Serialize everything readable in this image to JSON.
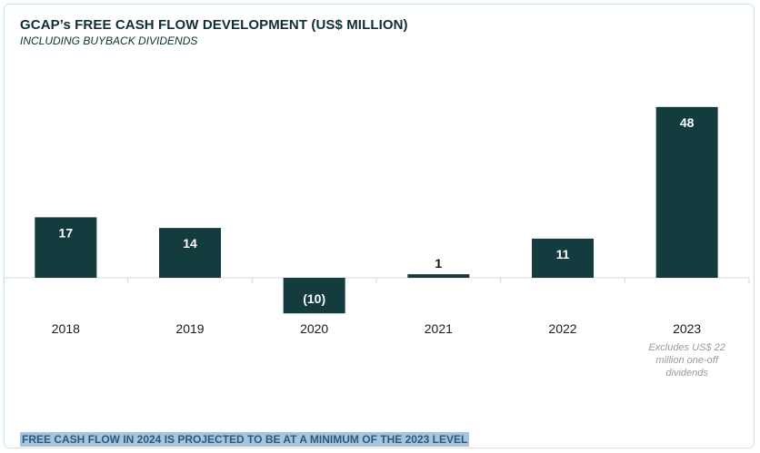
{
  "chart_data": {
    "type": "bar",
    "title": "GCAP’s FREE CASH FLOW DEVELOPMENT (US$ MILLION)",
    "subtitle": "INCLUDING BUYBACK DIVIDENDS",
    "categories": [
      "2018",
      "2019",
      "2020",
      "2021",
      "2022",
      "2023"
    ],
    "values": [
      17,
      14,
      -10,
      1,
      11,
      48
    ],
    "data_labels": [
      "17",
      "14",
      "(10)",
      "1",
      "11",
      "48"
    ],
    "ylim": [
      -10,
      48
    ],
    "grid": false,
    "bar_color": "#143b3e",
    "annotation": {
      "category": "2023",
      "lines": [
        "Excludes US$ 22",
        "million one-off",
        "dividends"
      ]
    }
  },
  "footer_note": "FREE CASH FLOW IN 2024 IS PROJECTED TO BE AT A MINIMUM OF THE 2023 LEVEL",
  "colors": {
    "bar": "#143b3e",
    "label_on_bar": "#ffffff",
    "label_outside": "#111111",
    "title": "#0f2f33",
    "footer_highlight": "#a7c4de"
  }
}
